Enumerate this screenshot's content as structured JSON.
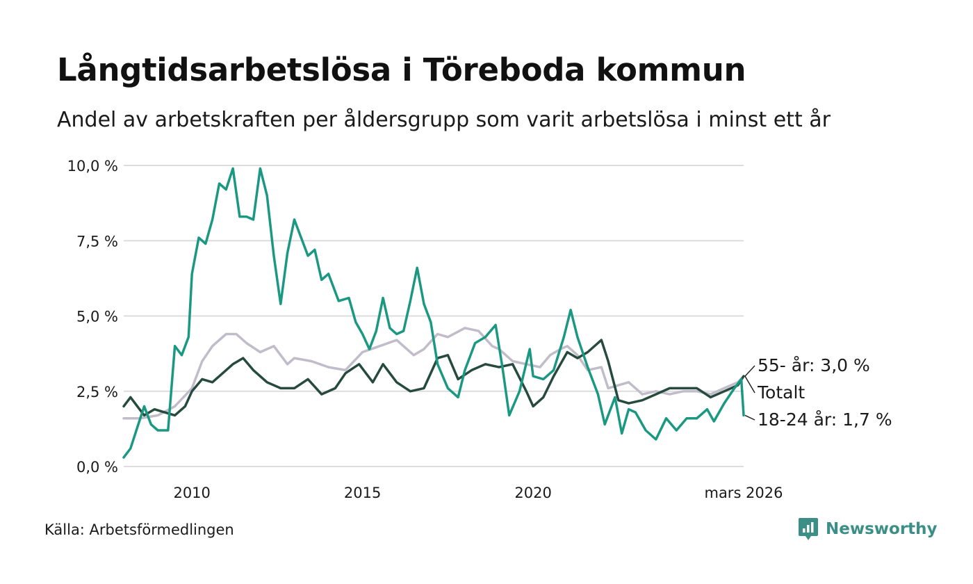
{
  "title": "Långtidsarbetslösa i Töreboda kommun",
  "subtitle": "Andel av arbetskraften per åldersgrupp som varit arbetslösa i minst ett år",
  "source": "Källa: Arbetsförmedlingen",
  "brand": "Newsworthy",
  "colors": {
    "young": "#1a9882",
    "total": "#264a3e",
    "old": "#c0bcc9",
    "grid": "#dcdcdc",
    "brand": "#3b8f86"
  },
  "chart_data": {
    "type": "line",
    "title": "Långtidsarbetslösa i Töreboda kommun",
    "xlabel": "",
    "ylabel": "",
    "xlim": [
      2008.0,
      2026.17
    ],
    "ylim": [
      0,
      10
    ],
    "y_ticks": [
      {
        "value": 0,
        "label": "0,0 %"
      },
      {
        "value": 2.5,
        "label": "2,5 %"
      },
      {
        "value": 5,
        "label": "5,0 %"
      },
      {
        "value": 7.5,
        "label": "7,5 %"
      },
      {
        "value": 10,
        "label": "10,0 %"
      }
    ],
    "x_ticks": [
      {
        "value": 2010,
        "label": "2010"
      },
      {
        "value": 2015,
        "label": "2015"
      },
      {
        "value": 2020,
        "label": "2020"
      },
      {
        "value": 2026.17,
        "label": "mars 2026"
      }
    ],
    "series": [
      {
        "name": "55- år",
        "key": "old",
        "end_label": "55- år: 3,0 %",
        "points": [
          [
            2008.0,
            1.6
          ],
          [
            2008.5,
            1.6
          ],
          [
            2009.0,
            1.7
          ],
          [
            2009.5,
            2.0
          ],
          [
            2010.0,
            2.6
          ],
          [
            2010.3,
            3.5
          ],
          [
            2010.6,
            4.0
          ],
          [
            2011.0,
            4.4
          ],
          [
            2011.3,
            4.4
          ],
          [
            2011.6,
            4.1
          ],
          [
            2012.0,
            3.8
          ],
          [
            2012.4,
            4.0
          ],
          [
            2012.8,
            3.4
          ],
          [
            2013.0,
            3.6
          ],
          [
            2013.5,
            3.5
          ],
          [
            2014.0,
            3.3
          ],
          [
            2014.5,
            3.2
          ],
          [
            2015.0,
            3.8
          ],
          [
            2015.5,
            4.0
          ],
          [
            2016.0,
            4.2
          ],
          [
            2016.5,
            3.7
          ],
          [
            2016.8,
            3.9
          ],
          [
            2017.2,
            4.4
          ],
          [
            2017.5,
            4.3
          ],
          [
            2018.0,
            4.6
          ],
          [
            2018.4,
            4.5
          ],
          [
            2018.8,
            4.0
          ],
          [
            2019.0,
            3.9
          ],
          [
            2019.4,
            3.5
          ],
          [
            2019.8,
            3.4
          ],
          [
            2020.2,
            3.3
          ],
          [
            2020.5,
            3.7
          ],
          [
            2020.8,
            3.9
          ],
          [
            2021.0,
            4.0
          ],
          [
            2021.3,
            3.7
          ],
          [
            2021.6,
            3.2
          ],
          [
            2022.0,
            3.3
          ],
          [
            2022.2,
            2.6
          ],
          [
            2022.5,
            2.7
          ],
          [
            2022.8,
            2.8
          ],
          [
            2023.2,
            2.4
          ],
          [
            2023.6,
            2.5
          ],
          [
            2024.0,
            2.4
          ],
          [
            2024.4,
            2.5
          ],
          [
            2024.8,
            2.5
          ],
          [
            2025.2,
            2.4
          ],
          [
            2025.6,
            2.6
          ],
          [
            2026.0,
            2.8
          ],
          [
            2026.17,
            3.0
          ]
        ]
      },
      {
        "name": "Totalt",
        "key": "total",
        "end_label": "Totalt",
        "points": [
          [
            2008.0,
            2.0
          ],
          [
            2008.2,
            2.3
          ],
          [
            2008.4,
            2.0
          ],
          [
            2008.6,
            1.7
          ],
          [
            2008.9,
            1.9
          ],
          [
            2009.2,
            1.8
          ],
          [
            2009.5,
            1.7
          ],
          [
            2009.8,
            2.0
          ],
          [
            2010.0,
            2.5
          ],
          [
            2010.3,
            2.9
          ],
          [
            2010.6,
            2.8
          ],
          [
            2010.9,
            3.1
          ],
          [
            2011.2,
            3.4
          ],
          [
            2011.5,
            3.6
          ],
          [
            2011.8,
            3.2
          ],
          [
            2012.2,
            2.8
          ],
          [
            2012.6,
            2.6
          ],
          [
            2013.0,
            2.6
          ],
          [
            2013.4,
            2.9
          ],
          [
            2013.8,
            2.4
          ],
          [
            2014.2,
            2.6
          ],
          [
            2014.5,
            3.1
          ],
          [
            2014.9,
            3.4
          ],
          [
            2015.3,
            2.8
          ],
          [
            2015.6,
            3.4
          ],
          [
            2016.0,
            2.8
          ],
          [
            2016.4,
            2.5
          ],
          [
            2016.8,
            2.6
          ],
          [
            2017.2,
            3.6
          ],
          [
            2017.5,
            3.7
          ],
          [
            2017.8,
            2.9
          ],
          [
            2018.2,
            3.2
          ],
          [
            2018.6,
            3.4
          ],
          [
            2019.0,
            3.3
          ],
          [
            2019.4,
            3.4
          ],
          [
            2019.8,
            2.5
          ],
          [
            2020.0,
            2.0
          ],
          [
            2020.3,
            2.3
          ],
          [
            2020.6,
            3.0
          ],
          [
            2021.0,
            3.8
          ],
          [
            2021.3,
            3.6
          ],
          [
            2021.6,
            3.8
          ],
          [
            2022.0,
            4.2
          ],
          [
            2022.2,
            3.5
          ],
          [
            2022.5,
            2.2
          ],
          [
            2022.8,
            2.1
          ],
          [
            2023.2,
            2.2
          ],
          [
            2023.6,
            2.4
          ],
          [
            2024.0,
            2.6
          ],
          [
            2024.4,
            2.6
          ],
          [
            2024.8,
            2.6
          ],
          [
            2025.2,
            2.3
          ],
          [
            2025.6,
            2.5
          ],
          [
            2026.0,
            2.7
          ],
          [
            2026.17,
            3.0
          ]
        ]
      },
      {
        "name": "18-24 år",
        "key": "young",
        "end_label": "18-24 år: 1,7 %",
        "points": [
          [
            2008.0,
            0.3
          ],
          [
            2008.2,
            0.6
          ],
          [
            2008.4,
            1.3
          ],
          [
            2008.6,
            2.0
          ],
          [
            2008.8,
            1.4
          ],
          [
            2009.0,
            1.2
          ],
          [
            2009.3,
            1.2
          ],
          [
            2009.5,
            4.0
          ],
          [
            2009.7,
            3.7
          ],
          [
            2009.9,
            4.3
          ],
          [
            2010.0,
            6.4
          ],
          [
            2010.2,
            7.6
          ],
          [
            2010.4,
            7.4
          ],
          [
            2010.6,
            8.2
          ],
          [
            2010.8,
            9.4
          ],
          [
            2011.0,
            9.2
          ],
          [
            2011.2,
            9.9
          ],
          [
            2011.4,
            8.3
          ],
          [
            2011.6,
            8.3
          ],
          [
            2011.8,
            8.2
          ],
          [
            2012.0,
            9.9
          ],
          [
            2012.2,
            9.0
          ],
          [
            2012.4,
            7.0
          ],
          [
            2012.6,
            5.4
          ],
          [
            2012.8,
            7.1
          ],
          [
            2013.0,
            8.2
          ],
          [
            2013.2,
            7.6
          ],
          [
            2013.4,
            7.0
          ],
          [
            2013.6,
            7.2
          ],
          [
            2013.8,
            6.2
          ],
          [
            2014.0,
            6.4
          ],
          [
            2014.3,
            5.5
          ],
          [
            2014.6,
            5.6
          ],
          [
            2014.8,
            4.8
          ],
          [
            2015.0,
            4.4
          ],
          [
            2015.2,
            3.9
          ],
          [
            2015.4,
            4.5
          ],
          [
            2015.6,
            5.6
          ],
          [
            2015.8,
            4.6
          ],
          [
            2016.0,
            4.4
          ],
          [
            2016.2,
            4.5
          ],
          [
            2016.4,
            5.5
          ],
          [
            2016.6,
            6.6
          ],
          [
            2016.8,
            5.4
          ],
          [
            2017.0,
            4.8
          ],
          [
            2017.2,
            3.4
          ],
          [
            2017.5,
            2.6
          ],
          [
            2017.8,
            2.3
          ],
          [
            2018.0,
            3.2
          ],
          [
            2018.3,
            4.1
          ],
          [
            2018.6,
            4.3
          ],
          [
            2018.9,
            4.7
          ],
          [
            2019.1,
            3.3
          ],
          [
            2019.3,
            1.7
          ],
          [
            2019.6,
            2.5
          ],
          [
            2019.9,
            3.9
          ],
          [
            2020.0,
            3.0
          ],
          [
            2020.3,
            2.9
          ],
          [
            2020.6,
            3.2
          ],
          [
            2020.9,
            4.3
          ],
          [
            2021.1,
            5.2
          ],
          [
            2021.3,
            4.3
          ],
          [
            2021.6,
            3.3
          ],
          [
            2021.9,
            2.4
          ],
          [
            2022.1,
            1.4
          ],
          [
            2022.4,
            2.3
          ],
          [
            2022.6,
            1.1
          ],
          [
            2022.8,
            1.9
          ],
          [
            2023.0,
            1.8
          ],
          [
            2023.3,
            1.2
          ],
          [
            2023.6,
            0.9
          ],
          [
            2023.9,
            1.6
          ],
          [
            2024.2,
            1.2
          ],
          [
            2024.5,
            1.6
          ],
          [
            2024.8,
            1.6
          ],
          [
            2025.1,
            1.9
          ],
          [
            2025.3,
            1.5
          ],
          [
            2025.6,
            2.1
          ],
          [
            2025.9,
            2.6
          ],
          [
            2026.1,
            2.9
          ],
          [
            2026.17,
            1.7
          ]
        ]
      }
    ]
  }
}
